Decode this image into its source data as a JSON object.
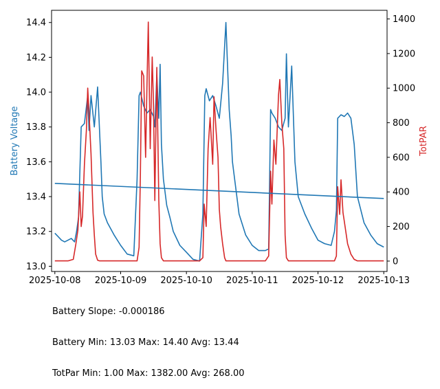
{
  "chart_data": {
    "type": "line",
    "title": "",
    "xlabel": "",
    "ylabel_left": "Battery Voltage",
    "ylabel_right": "TotPAR",
    "x_ticks": [
      "2025-10-08",
      "2025-10-09",
      "2025-10-10",
      "2025-10-11",
      "2025-10-12",
      "2025-10-13"
    ],
    "x_range_days": [
      -0.05,
      5.05
    ],
    "ylim_left": [
      12.97,
      14.47
    ],
    "ylim_right": [
      -60,
      1450
    ],
    "yticks_left": [
      "13.0",
      "13.2",
      "13.4",
      "13.6",
      "13.8",
      "14.0",
      "14.2",
      "14.4"
    ],
    "yticks_right": [
      "0",
      "200",
      "400",
      "600",
      "800",
      "1000",
      "1200",
      "1400"
    ],
    "colors": {
      "battery": "#1f77b4",
      "par": "#d62728"
    },
    "series": [
      {
        "name": "Battery Voltage",
        "axis": "left",
        "x_days": [
          0.0,
          0.05,
          0.1,
          0.15,
          0.2,
          0.25,
          0.3,
          0.33,
          0.36,
          0.4,
          0.45,
          0.5,
          0.52,
          0.55,
          0.6,
          0.65,
          0.7,
          0.72,
          0.75,
          0.8,
          0.9,
          1.0,
          1.1,
          1.2,
          1.25,
          1.28,
          1.3,
          1.35,
          1.4,
          1.45,
          1.5,
          1.52,
          1.55,
          1.58,
          1.6,
          1.62,
          1.65,
          1.7,
          1.75,
          1.8,
          1.9,
          2.0,
          2.1,
          2.2,
          2.25,
          2.28,
          2.3,
          2.35,
          2.4,
          2.45,
          2.5,
          2.55,
          2.6,
          2.62,
          2.65,
          2.68,
          2.7,
          2.75,
          2.8,
          2.9,
          3.0,
          3.1,
          3.2,
          3.25,
          3.28,
          3.3,
          3.35,
          3.4,
          3.45,
          3.5,
          3.52,
          3.55,
          3.6,
          3.65,
          3.7,
          3.8,
          3.9,
          4.0,
          4.1,
          4.2,
          4.25,
          4.28,
          4.3,
          4.35,
          4.4,
          4.45,
          4.5,
          4.55,
          4.6,
          4.7,
          4.8,
          4.9,
          5.0
        ],
        "values": [
          13.19,
          13.17,
          13.15,
          13.14,
          13.15,
          13.16,
          13.14,
          13.2,
          13.28,
          13.8,
          13.82,
          13.98,
          13.78,
          13.98,
          13.8,
          14.03,
          13.6,
          13.4,
          13.3,
          13.25,
          13.18,
          13.12,
          13.07,
          13.06,
          13.5,
          13.98,
          14.0,
          13.92,
          13.88,
          13.9,
          13.86,
          13.8,
          14.1,
          13.85,
          14.16,
          13.7,
          13.5,
          13.35,
          13.28,
          13.2,
          13.12,
          13.08,
          13.04,
          13.03,
          13.3,
          13.98,
          14.02,
          13.95,
          13.98,
          13.92,
          13.85,
          14.05,
          14.4,
          14.2,
          13.9,
          13.75,
          13.6,
          13.45,
          13.3,
          13.18,
          13.12,
          13.09,
          13.09,
          13.1,
          13.9,
          13.88,
          13.85,
          13.8,
          13.78,
          13.85,
          14.22,
          13.8,
          14.15,
          13.6,
          13.4,
          13.3,
          13.22,
          13.15,
          13.13,
          13.12,
          13.2,
          13.32,
          13.85,
          13.87,
          13.86,
          13.88,
          13.85,
          13.7,
          13.4,
          13.25,
          13.18,
          13.13,
          13.11
        ]
      },
      {
        "name": "TotPAR",
        "axis": "right",
        "x_days": [
          0.0,
          0.2,
          0.28,
          0.32,
          0.35,
          0.38,
          0.4,
          0.42,
          0.45,
          0.48,
          0.5,
          0.52,
          0.55,
          0.58,
          0.6,
          0.62,
          0.65,
          0.68,
          0.72,
          0.78,
          0.85,
          1.0,
          1.15,
          1.25,
          1.28,
          1.3,
          1.32,
          1.35,
          1.38,
          1.4,
          1.42,
          1.45,
          1.48,
          1.5,
          1.52,
          1.55,
          1.58,
          1.6,
          1.62,
          1.65,
          1.7,
          1.8,
          1.9,
          2.0,
          2.1,
          2.2,
          2.25,
          2.27,
          2.3,
          2.33,
          2.36,
          2.4,
          2.42,
          2.45,
          2.48,
          2.5,
          2.52,
          2.55,
          2.58,
          2.6,
          2.62,
          2.65,
          2.68,
          2.72,
          2.8,
          2.9,
          3.0,
          3.1,
          3.2,
          3.25,
          3.28,
          3.3,
          3.33,
          3.36,
          3.4,
          3.42,
          3.45,
          3.48,
          3.5,
          3.52,
          3.55,
          3.58,
          3.6,
          3.62,
          3.65,
          3.68,
          3.72,
          3.8,
          3.9,
          4.0,
          4.1,
          4.2,
          4.25,
          4.28,
          4.3,
          4.33,
          4.35,
          4.38,
          4.4,
          4.45,
          4.5,
          4.55,
          4.6,
          4.7,
          4.8,
          4.9,
          5.0
        ],
        "values": [
          1,
          1,
          10,
          100,
          180,
          400,
          200,
          260,
          560,
          760,
          1000,
          860,
          620,
          280,
          150,
          40,
          5,
          1,
          1,
          1,
          1,
          1,
          1,
          1,
          80,
          500,
          1100,
          1070,
          600,
          1000,
          1382,
          650,
          1180,
          900,
          350,
          1120,
          350,
          100,
          20,
          1,
          1,
          1,
          1,
          1,
          1,
          1,
          20,
          330,
          200,
          650,
          830,
          560,
          950,
          760,
          600,
          300,
          200,
          100,
          20,
          1,
          1,
          1,
          1,
          1,
          1,
          1,
          1,
          1,
          1,
          30,
          520,
          330,
          700,
          560,
          960,
          1050,
          800,
          650,
          150,
          20,
          1,
          1,
          1,
          1,
          1,
          1,
          1,
          1,
          1,
          1,
          1,
          1,
          1,
          30,
          430,
          270,
          470,
          280,
          230,
          100,
          40,
          10,
          1,
          1,
          1,
          1,
          1
        ]
      }
    ]
  },
  "stats": {
    "line1": "Battery Slope: -0.000186",
    "line2": "Battery Min: 13.03 Max: 14.40 Avg: 13.44",
    "line3": "TotPar Min: 1.00 Max: 1382.00 Avg: 268.00"
  },
  "trend": {
    "start": 13.476,
    "end": 13.389
  }
}
